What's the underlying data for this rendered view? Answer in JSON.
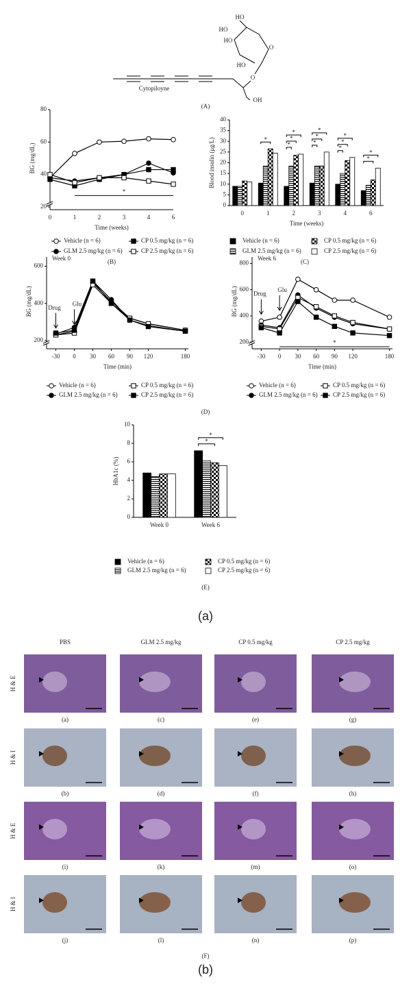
{
  "figure_labels": [
    "(a)",
    "(b)"
  ],
  "structure": {
    "name": "Cytopiloyne",
    "label": "(A)",
    "atoms": [
      "HO",
      "HO",
      "HO",
      "HO",
      "O",
      "O",
      "OH"
    ]
  },
  "chart_data": [
    {
      "type": "line",
      "panel_label": "(B)",
      "xlabel": "Time (weeks)",
      "ylabel": "BG (mg/dL)",
      "axis_break": true,
      "categories": [
        "0",
        "1",
        "2",
        "3",
        "4",
        "6"
      ],
      "ylim": [
        20,
        80
      ],
      "yticks": [
        20,
        40,
        60,
        80
      ],
      "significance": "*",
      "series": [
        {
          "name": "Vehicle (n = 6)",
          "color": "#000000",
          "marker": "open-circle",
          "values": [
            38,
            53,
            60,
            60.5,
            62,
            61.5
          ]
        },
        {
          "name": "GLM 2.5 mg/kg (n = 6)",
          "color": "#000000",
          "marker": "filled-circle",
          "values": [
            38,
            36,
            38,
            40,
            47,
            41
          ]
        },
        {
          "name": "CP 0.5 mg/kg (n = 6)",
          "color": "#000000",
          "marker": "filled-square",
          "values": [
            37,
            33,
            37,
            40,
            43,
            43
          ]
        },
        {
          "name": "CP 2.5 mg/kg (n = 6)",
          "color": "#000000",
          "marker": "open-square",
          "values": [
            40,
            35,
            38,
            38,
            36,
            34
          ]
        }
      ]
    },
    {
      "type": "bar",
      "panel_label": "(C)",
      "xlabel": "Time (weeks)",
      "ylabel": "Blood insulin (μg/L)",
      "categories": [
        "0",
        "1",
        "2",
        "3",
        "4",
        "6"
      ],
      "ylim": [
        0,
        40
      ],
      "yticks": [
        0,
        5,
        10,
        15,
        20,
        25,
        30,
        35,
        40
      ],
      "series": [
        {
          "name": "Vehicle (n = 6)",
          "color": "#000000",
          "pattern": "solid",
          "values": [
            9,
            10.5,
            9,
            10.5,
            10,
            7
          ]
        },
        {
          "name": "GLM 2.5 mg/kg (n = 6)",
          "color": "#000000",
          "pattern": "hstripe",
          "values": [
            9,
            18.5,
            18.5,
            18.5,
            15,
            9.5
          ],
          "significance": [
            null,
            null,
            "*",
            "*",
            "*",
            null
          ]
        },
        {
          "name": "CP 0.5 mg/kg (n = 6)",
          "color": "#000000",
          "pattern": "checker",
          "values": [
            11.5,
            26.5,
            23.5,
            18.5,
            21,
            12
          ],
          "significance": [
            null,
            "*",
            "*",
            "*",
            "*",
            "*"
          ]
        },
        {
          "name": "CP 2.5 mg/kg (n = 6)",
          "color": "#000000",
          "pattern": "open",
          "values": [
            11,
            24.5,
            24,
            25,
            22.5,
            17.5
          ],
          "significance": [
            null,
            null,
            "*",
            "*",
            "*",
            "*"
          ]
        }
      ]
    },
    {
      "type": "line",
      "panel_label": "(D)",
      "title": "Week 0",
      "arrows": [
        "Drug",
        "Glu"
      ],
      "xlabel": "Time (min)",
      "ylabel": "BG (mg/dL)",
      "axis_break": true,
      "x": [
        -30,
        0,
        30,
        60,
        90,
        120,
        180
      ],
      "xlim": [
        -45,
        185
      ],
      "xticks": [
        -30,
        0,
        30,
        60,
        90,
        120,
        180
      ],
      "ylim": [
        170,
        650
      ],
      "yticks": [
        200,
        400,
        600
      ],
      "series": [
        {
          "name": "Vehicle (n = 6)",
          "color": "#000000",
          "marker": "open-circle",
          "values": [
            230,
            250,
            510,
            410,
            320,
            290,
            255
          ]
        },
        {
          "name": "GLM 2.5 mg/kg (n = 6)",
          "color": "#000000",
          "marker": "filled-circle",
          "values": [
            235,
            270,
            520,
            420,
            310,
            280,
            250
          ]
        },
        {
          "name": "CP 0.5 mg/kg (n = 6)",
          "color": "#000000",
          "marker": "open-square",
          "values": [
            230,
            240,
            500,
            400,
            320,
            290,
            255
          ]
        },
        {
          "name": "CP 2.5 mg/kg (n = 6)",
          "color": "#000000",
          "marker": "filled-square",
          "values": [
            240,
            255,
            520,
            400,
            310,
            275,
            250
          ]
        }
      ]
    },
    {
      "type": "line",
      "title": "Week 6",
      "arrows": [
        "Drug",
        "Glu"
      ],
      "xlabel": "Time (min)",
      "ylabel": "BG (mg/dL)",
      "axis_break": true,
      "significance": "*",
      "x": [
        -30,
        0,
        30,
        60,
        90,
        120,
        180
      ],
      "xlim": [
        -45,
        185
      ],
      "xticks": [
        -30,
        0,
        30,
        60,
        90,
        120,
        180
      ],
      "ylim": [
        170,
        850
      ],
      "yticks": [
        200,
        400,
        600,
        800
      ],
      "series": [
        {
          "name": "Vehicle (n = 6)",
          "color": "#000000",
          "marker": "open-circle",
          "values": [
            360,
            390,
            680,
            600,
            520,
            520,
            390
          ]
        },
        {
          "name": "GLM 2.5 mg/kg (n = 6)",
          "color": "#000000",
          "marker": "filled-circle",
          "values": [
            330,
            310,
            560,
            460,
            390,
            340,
            300
          ]
        },
        {
          "name": "CP 0.5 mg/kg (n = 6)",
          "color": "#000000",
          "marker": "open-square",
          "values": [
            320,
            300,
            540,
            470,
            400,
            350,
            300
          ]
        },
        {
          "name": "CP 2.5 mg/kg (n = 6)",
          "color": "#000000",
          "marker": "filled-square",
          "values": [
            310,
            270,
            510,
            390,
            320,
            270,
            250
          ]
        }
      ]
    },
    {
      "type": "bar",
      "panel_label": "(E)",
      "ylabel": "HbA1c (%)",
      "categories": [
        "Week 0",
        "Week 6"
      ],
      "ylim": [
        0,
        10
      ],
      "yticks": [
        0,
        2,
        4,
        6,
        8,
        10
      ],
      "series": [
        {
          "name": "Vehicle (n = 6)",
          "color": "#000000",
          "pattern": "solid",
          "values": [
            4.8,
            7.2
          ]
        },
        {
          "name": "GLM 2.5 mg/kg (n = 6)",
          "color": "#000000",
          "pattern": "hstripe",
          "values": [
            4.4,
            6.1
          ]
        },
        {
          "name": "CP 0.5 mg/kg (n = 6)",
          "color": "#000000",
          "pattern": "checker",
          "values": [
            4.7,
            5.9
          ],
          "significance": [
            null,
            "*"
          ]
        },
        {
          "name": "CP 2.5 mg/kg (n = 6)",
          "color": "#000000",
          "pattern": "open",
          "values": [
            4.7,
            5.6
          ],
          "significance": [
            null,
            "*"
          ]
        }
      ]
    }
  ],
  "microscopy": {
    "label": "(F)",
    "columns": [
      "PBS",
      "GLM 2.5 mg/kg",
      "CP 0.5 mg/kg",
      "CP 2.5 mg/kg"
    ],
    "rows": [
      "H & E",
      "H & I",
      "H & E",
      "H & I"
    ],
    "captions": [
      [
        "(a)",
        "(c)",
        "(e)",
        "(g)"
      ],
      [
        "(b)",
        "(d)",
        "(f)",
        "(h)"
      ],
      [
        "(i)",
        "(k)",
        "(m)",
        "(o)"
      ],
      [
        "(j)",
        "(l)",
        "(n)",
        "(p)"
      ]
    ]
  }
}
